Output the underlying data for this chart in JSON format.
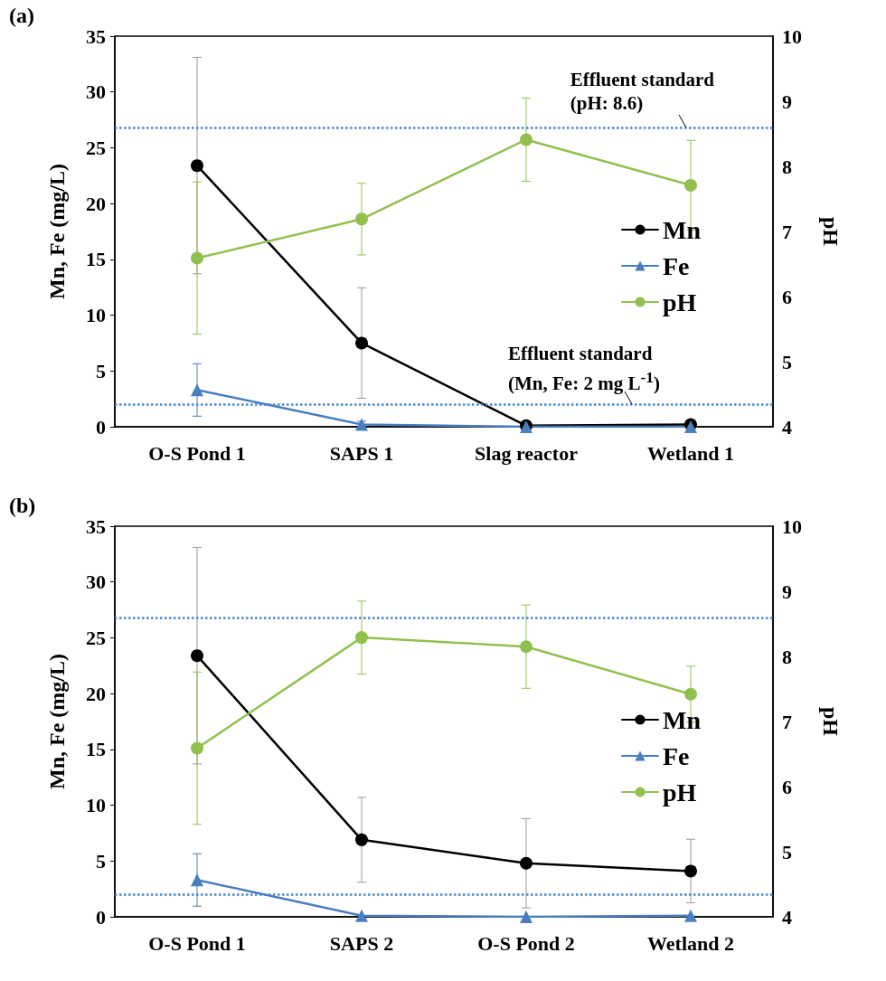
{
  "chart_data": [
    {
      "type": "line",
      "title": "(a)",
      "categories": [
        "O-S Pond 1",
        "SAPS 1",
        "Slag reactor",
        "Wetland 1"
      ],
      "ylabel": "Mn, Fe (mg/L)",
      "y2label": "pH",
      "ylim": [
        0,
        35
      ],
      "yticks": [
        0,
        5,
        10,
        15,
        20,
        25,
        30,
        35
      ],
      "y2lim": [
        4,
        10
      ],
      "y2ticks": [
        4,
        5,
        6,
        7,
        8,
        9,
        10
      ],
      "legend": "right",
      "grid": false,
      "line_style": "solid",
      "series": [
        {
          "name": "Mn",
          "color": "#000000",
          "marker": "circle",
          "values": [
            23.4,
            7.5,
            0.1,
            0.2
          ],
          "errors": [
            9.7,
            4.95,
            0.1,
            0.1
          ]
        },
        {
          "name": "Fe",
          "color": "#4a7ebf",
          "marker": "triangle",
          "values": [
            3.3,
            0.2,
            0,
            0
          ],
          "errors": [
            2.35,
            0.3,
            null,
            null
          ]
        },
        {
          "name": "pH",
          "color": "#92c050",
          "marker": "circle",
          "axis": "y2",
          "values": [
            6.59,
            7.19,
            8.41,
            7.71
          ],
          "errors": [
            1.17,
            0.55,
            0.64,
            0.69
          ]
        }
      ],
      "ref_lines": [
        {
          "axis": "y2",
          "value": 8.6,
          "label": "Effluent standard\n(pH: 8.6)",
          "color": "#4a86d0",
          "line_style": "dotted"
        },
        {
          "axis": "y",
          "value": 2,
          "label": "Effluent standard\n(Mn, Fe: 2 mg L$^{-1}$)",
          "color": "#4a86d0",
          "line_style": "dotted"
        }
      ]
    },
    {
      "type": "line",
      "title": "(b)",
      "categories": [
        "O-S Pond 1",
        "SAPS 2",
        "O-S Pond 2",
        "Wetland 2"
      ],
      "ylabel": "Mn, Fe (mg/L)",
      "y2label": "pH",
      "ylim": [
        0,
        35
      ],
      "yticks": [
        0,
        5,
        10,
        15,
        20,
        25,
        30,
        35
      ],
      "y2lim": [
        4,
        10
      ],
      "y2ticks": [
        4,
        5,
        6,
        7,
        8,
        9,
        10
      ],
      "legend": "right",
      "grid": false,
      "line_style": "solid",
      "series": [
        {
          "name": "Mn",
          "color": "#000000",
          "marker": "circle",
          "values": [
            23.4,
            6.9,
            4.8,
            4.1
          ],
          "errors": [
            9.7,
            3.8,
            4.0,
            2.85
          ]
        },
        {
          "name": "Fe",
          "color": "#4a7ebf",
          "marker": "triangle",
          "values": [
            3.3,
            0.1,
            0,
            0.1
          ],
          "errors": [
            2.35,
            null,
            null,
            null
          ]
        },
        {
          "name": "pH",
          "color": "#92c050",
          "marker": "circle",
          "axis": "y2",
          "values": [
            6.59,
            8.29,
            8.15,
            7.42
          ],
          "errors": [
            1.17,
            0.56,
            0.64,
            0.43
          ]
        }
      ],
      "ref_lines": [
        {
          "axis": "y2",
          "value": 8.6,
          "label": null,
          "color": "#4a86d0",
          "line_style": "dotted"
        },
        {
          "axis": "y",
          "value": 2,
          "label": null,
          "color": "#4a86d0",
          "line_style": "dotted"
        }
      ]
    }
  ]
}
